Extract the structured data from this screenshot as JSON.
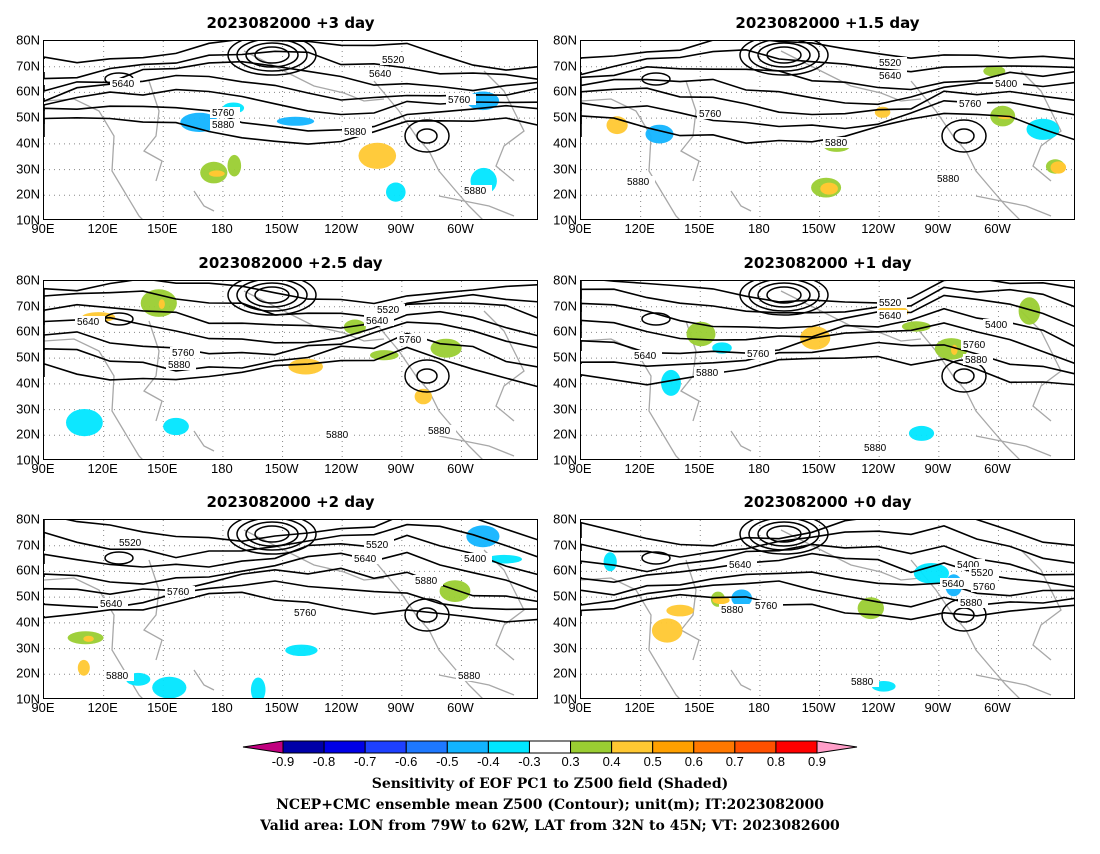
{
  "panels": [
    {
      "title": "2023082000 +3 day",
      "contour_labels": [
        "5640",
        "5520",
        "5640",
        "5760",
        "5760",
        "5880",
        "5880",
        "5880"
      ]
    },
    {
      "title": "2023082000 +1.5 day",
      "contour_labels": [
        "5520",
        "5640",
        "5400",
        "5760",
        "5760",
        "5880",
        "5880",
        "5880"
      ]
    },
    {
      "title": "2023082000 +2.5 day",
      "contour_labels": [
        "5640",
        "5520",
        "5640",
        "5760",
        "5760",
        "5880",
        "5880",
        "5880"
      ]
    },
    {
      "title": "2023082000 +1 day",
      "contour_labels": [
        "5520",
        "5640",
        "5400",
        "5640",
        "5760",
        "5760",
        "5880",
        "5880",
        "5880"
      ]
    },
    {
      "title": "2023082000 +2 day",
      "contour_labels": [
        "5520",
        "5520",
        "5640",
        "5400",
        "5640",
        "5760",
        "5760",
        "5880",
        "5880",
        "5880"
      ]
    },
    {
      "title": "2023082000 +0 day",
      "contour_labels": [
        "5640",
        "5400",
        "5520",
        "5640",
        "5760",
        "5760",
        "5880",
        "5880",
        "5880"
      ]
    }
  ],
  "axes": {
    "lat_labels": [
      "80N",
      "70N",
      "60N",
      "50N",
      "40N",
      "30N",
      "20N",
      "10N"
    ],
    "lon_labels": [
      "90E",
      "120E",
      "150E",
      "180",
      "150W",
      "120W",
      "90W",
      "60W"
    ]
  },
  "colorbar": {
    "ticks": [
      "-0.9",
      "-0.8",
      "-0.7",
      "-0.6",
      "-0.5",
      "-0.4",
      "-0.3",
      "0.3",
      "0.4",
      "0.5",
      "0.6",
      "0.7",
      "0.8",
      "0.9"
    ],
    "colors": [
      "#c0007f",
      "#0000a8",
      "#0000e6",
      "#1e40ff",
      "#1e78ff",
      "#12b4ff",
      "#00e6ff",
      "#ffffff",
      "#9acd32",
      "#ffc832",
      "#ffa000",
      "#ff7800",
      "#ff5000",
      "#ff0000",
      "#ff9ec8"
    ]
  },
  "captions": {
    "line1": "Sensitivity of EOF PC1 to Z500 field (Shaded)",
    "line2": "NCEP+CMC ensemble mean Z500 (Contour); unit(m); IT:2023082000",
    "line3": "Valid area: LON from 79W to 62W, LAT from 32N to 45N; VT: 2023082600"
  }
}
